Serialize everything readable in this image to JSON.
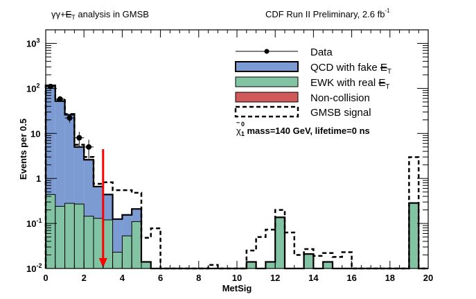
{
  "chart_data": {
    "type": "bar",
    "histogram_style": "stacked-step",
    "title_left": {
      "prefix": "γγ+",
      "met": "E",
      "met_sub": "T",
      "suffix": " analysis in GMSB"
    },
    "title_right": {
      "text": "CDF Run II Preliminary, 2.6 fb",
      "sup": "-1"
    },
    "xlabel": "MetSig",
    "ylabel": "Events per 0.5",
    "xlim": [
      0,
      20
    ],
    "ylim": [
      0.01,
      2000
    ],
    "yscale": "log",
    "bin_width": 0.5,
    "x_ticks": [
      "0",
      "2",
      "4",
      "6",
      "8",
      "10",
      "12",
      "14",
      "16",
      "18",
      "20"
    ],
    "y_ticks": [
      {
        "base": "10",
        "exp": "-2"
      },
      {
        "base": "10",
        "exp": "-1"
      },
      {
        "base": "1",
        "exp": ""
      },
      {
        "base": "10",
        "exp": ""
      },
      {
        "base": "10",
        "exp": "2"
      },
      {
        "base": "10",
        "exp": "3"
      }
    ],
    "series": [
      {
        "name": "EWK with real MET",
        "kind": "stack",
        "color": "#82c3a3",
        "values": [
          0.44,
          0.24,
          0.28,
          0.27,
          0.145,
          0.13,
          0.12,
          0.023,
          0.053,
          0.11,
          0.014,
          0,
          0,
          0,
          0,
          0,
          0,
          0,
          0,
          0,
          0,
          0.014,
          0,
          0.014,
          0.137,
          0,
          0,
          0.021,
          0,
          0.014,
          0,
          0,
          0,
          0,
          0,
          0,
          0,
          0,
          0.285,
          0
        ]
      },
      {
        "name": "QCD with fake MET",
        "kind": "stack",
        "color": "#7b9bd2",
        "values": [
          116.6,
          51.8,
          25.7,
          4.73,
          2.46,
          0.53,
          0.32,
          0.102,
          0.102,
          0.1,
          0,
          0,
          0,
          0,
          0,
          0,
          0,
          0,
          0,
          0,
          0,
          0,
          0,
          0,
          0,
          0,
          0,
          0,
          0,
          0,
          0,
          0,
          0,
          0,
          0,
          0,
          0,
          0,
          0,
          0
        ]
      },
      {
        "name": "Non-collision",
        "kind": "stack",
        "color": "#d05a5a",
        "values": [
          0,
          0,
          0,
          0,
          0,
          0,
          0,
          0,
          0,
          0,
          0,
          0,
          0,
          0,
          0,
          0,
          0,
          0,
          0,
          0,
          0,
          0,
          0,
          0,
          0,
          0,
          0,
          0,
          0,
          0,
          0,
          0,
          0,
          0,
          0,
          0,
          0,
          0,
          0,
          0
        ]
      },
      {
        "name": "GMSB signal",
        "kind": "dashed-line",
        "color": "#000000",
        "values": [
          115,
          55,
          27,
          5.6,
          3.0,
          0.76,
          0.82,
          0.55,
          0.55,
          0.48,
          0.048,
          0.078,
          0,
          0,
          0,
          0,
          0,
          0.012,
          0,
          0,
          0,
          0.025,
          0.05,
          0.073,
          0.2,
          0.063,
          0.02,
          0.027,
          0.019,
          0.022,
          0.018,
          0.023,
          0,
          0,
          0,
          0,
          0,
          0,
          2.97,
          0
        ]
      },
      {
        "name": "Data",
        "kind": "points",
        "color": "#000000",
        "x": [
          0.25,
          0.75,
          1.25,
          1.75,
          2.25
        ],
        "values": [
          110,
          58,
          22,
          8,
          5
        ]
      }
    ],
    "cut_arrow": {
      "x": 3,
      "color": "#ff0000"
    },
    "legend": {
      "placement": "top-right",
      "items": [
        {
          "label": "Data",
          "met": false
        },
        {
          "label": "QCD with fake ",
          "met": true
        },
        {
          "label": "EWK with real ",
          "met": true
        },
        {
          "label": "Non-collision",
          "met": false
        },
        {
          "label": "GMSB signal",
          "met": false
        }
      ],
      "met_symbol": "E",
      "met_sub": "T",
      "annotation": {
        "particle": "χ",
        "tilde": "~",
        "sup": "0",
        "sub": "1",
        "text": " mass=140 GeV, lifetime=0 ns"
      }
    }
  }
}
